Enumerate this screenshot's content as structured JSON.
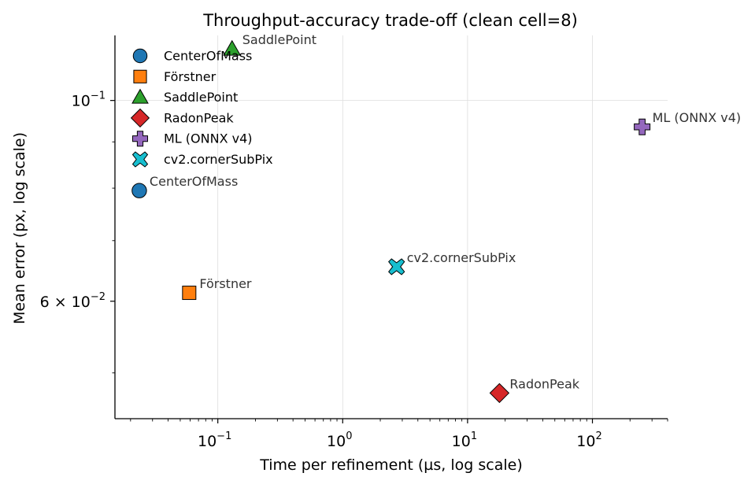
{
  "chart_data": {
    "type": "scatter",
    "title": "Throughput-accuracy trade-off (clean cell=8)",
    "xlabel": "Time per refinement (µs, log scale)",
    "ylabel": "Mean error (px, log scale)",
    "xscale": "log",
    "yscale": "log",
    "xlim": [
      0.015,
      400
    ],
    "ylim": [
      0.0445,
      0.118
    ],
    "grid": "major only",
    "legend_position": "upper-left",
    "x_ticks": [
      {
        "value": 0.1,
        "base": "10",
        "exp": "−1"
      },
      {
        "value": 1,
        "base": "10",
        "exp": "0"
      },
      {
        "value": 10,
        "base": "10",
        "exp": "1"
      },
      {
        "value": 100,
        "base": "10",
        "exp": "2"
      }
    ],
    "y_ticks": [
      {
        "value": 0.1,
        "base": "10",
        "exp": "−1",
        "mantissa": ""
      },
      {
        "value": 0.06,
        "base": "10",
        "exp": "−2",
        "mantissa": "6 × "
      }
    ],
    "series": [
      {
        "name": "CenterOfMass",
        "x": 0.0235,
        "y": 0.0795,
        "color": "#1f77b4",
        "marker": "circle",
        "point_label": "CenterOfMass"
      },
      {
        "name": "Förstner",
        "x": 0.059,
        "y": 0.0613,
        "color": "#ff7f0e",
        "marker": "square",
        "point_label": "Förstner"
      },
      {
        "name": "SaddlePoint",
        "x": 0.13,
        "y": 0.114,
        "color": "#2ca02c",
        "marker": "triangle",
        "point_label": "SaddlePoint"
      },
      {
        "name": "RadonPeak",
        "x": 18,
        "y": 0.0475,
        "color": "#d62728",
        "marker": "diamond",
        "point_label": "RadonPeak"
      },
      {
        "name": "ML (ONNX v4)",
        "x": 250,
        "y": 0.0935,
        "color": "#9467bd",
        "marker": "plus",
        "point_label": "ML (ONNX v4)"
      },
      {
        "name": "cv2.cornerSubPix",
        "x": 2.7,
        "y": 0.0655,
        "color": "#17becf",
        "marker": "x",
        "point_label": "cv2.cornerSubPix"
      }
    ]
  }
}
